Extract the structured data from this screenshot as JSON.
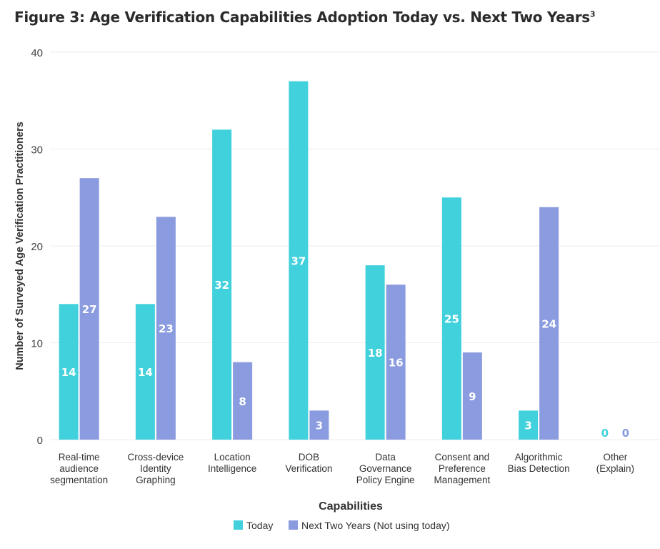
{
  "chart_data": {
    "type": "bar",
    "title": "Figure 3: Age Verification Capabilities Adoption Today vs. Next Two Years",
    "title_superscript": "3",
    "xlabel": "Capabilities",
    "ylabel": "Number of Surveyed Age Verification Practitioners",
    "ylim": [
      0,
      40
    ],
    "yticks": [
      0,
      10,
      20,
      30,
      40
    ],
    "grid": true,
    "legend_placement": "bottom",
    "categories": [
      [
        "Real-time",
        "audience",
        "segmentation"
      ],
      [
        "Cross-device",
        "Identity",
        "Graphing"
      ],
      [
        "Location",
        "Intelligence"
      ],
      [
        "DOB",
        "Verification"
      ],
      [
        "Data",
        "Governance",
        "Policy Engine"
      ],
      [
        "Consent and",
        "Preference",
        "Management"
      ],
      [
        "Algorithmic",
        "Bias Detection"
      ],
      [
        "Other",
        "(Explain)"
      ]
    ],
    "series": [
      {
        "name": "Today",
        "color": "#41D1DC",
        "values": [
          14,
          14,
          32,
          37,
          18,
          25,
          3,
          0
        ]
      },
      {
        "name": "Next Two Years (Not using today)",
        "color": "#8A9BDF",
        "values": [
          27,
          23,
          8,
          3,
          16,
          9,
          24,
          0
        ]
      }
    ]
  }
}
